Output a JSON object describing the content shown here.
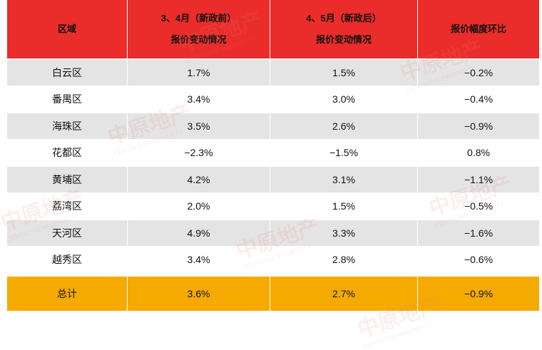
{
  "table": {
    "header": [
      [
        "区域"
      ],
      [
        "3、4月（新政前）",
        "报价变动情况"
      ],
      [
        "4、5月（新政后）",
        "报价变动情况"
      ],
      [
        "报价幅度环比"
      ]
    ],
    "rows": [
      [
        "白云区",
        "1.7%",
        "1.5%",
        "−0.2%"
      ],
      [
        "番禺区",
        "3.4%",
        "3.0%",
        "−0.4%"
      ],
      [
        "海珠区",
        "3.5%",
        "2.6%",
        "−0.9%"
      ],
      [
        "花都区",
        "−2.3%",
        "−1.5%",
        "0.8%"
      ],
      [
        "黄埔区",
        "4.2%",
        "3.1%",
        "−1.1%"
      ],
      [
        "荔湾区",
        "2.0%",
        "1.5%",
        "−0.5%"
      ],
      [
        "天河区",
        "4.9%",
        "3.3%",
        "−1.6%"
      ],
      [
        "越秀区",
        "3.4%",
        "2.8%",
        "−0.6%"
      ]
    ],
    "total": [
      "总计",
      "3.6%",
      "2.7%",
      "−0.9%"
    ]
  },
  "watermark": {
    "cn": "中原地产",
    "en": "CENTALINE PROPERTY"
  }
}
